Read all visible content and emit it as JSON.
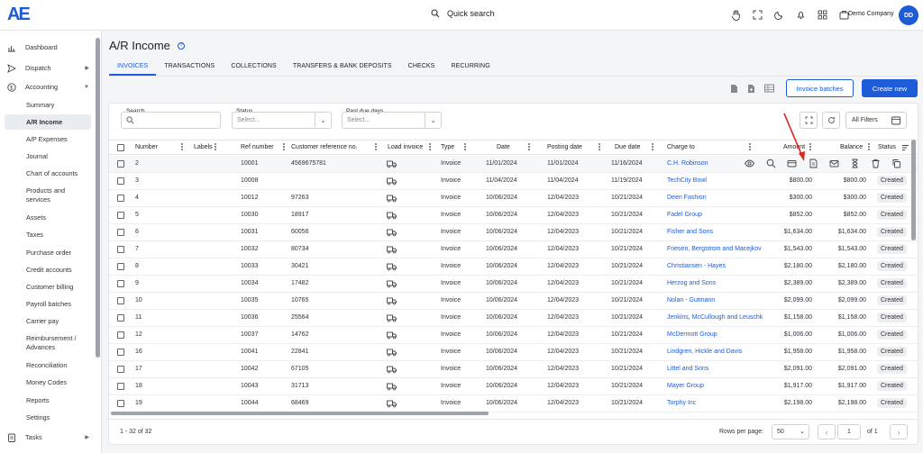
{
  "app": {
    "logo": "AE",
    "quick_search": "Quick search",
    "company": "Demo Company",
    "avatar": "DD"
  },
  "sidebar": {
    "top_items": [
      {
        "label": "Dashboard",
        "icon": "bar-chart-icon"
      },
      {
        "label": "Dispatch",
        "icon": "send-icon"
      },
      {
        "label": "Accounting",
        "icon": "dollar-icon"
      }
    ],
    "sub_items": [
      "Summary",
      "A/R Income",
      "A/P Expenses",
      "Journal",
      "Chart of accounts",
      "Products and services",
      "Assets",
      "Taxes",
      "Purchase order",
      "Credit accounts",
      "Customer billing",
      "Payroll batches",
      "Carrier pay",
      "Reimbursement / Advances",
      "Reconciliation",
      "Money Codes",
      "Reports",
      "Settings"
    ],
    "bottom_items": [
      {
        "label": "Tasks",
        "icon": "tasks-icon"
      }
    ]
  },
  "page": {
    "title": "A/R Income"
  },
  "tabs": [
    "INVOICES",
    "TRANSACTIONS",
    "COLLECTIONS",
    "TRANSFERS & BANK DEPOSITS",
    "CHECKS",
    "RECURRING"
  ],
  "actions": {
    "invoice_batches": "Invoice batches",
    "create_new": "Create new"
  },
  "filters": {
    "search_label": "Search",
    "status_label": "Status",
    "status_placeholder": "Select...",
    "past_due_label": "Past due days",
    "past_due_placeholder": "Select...",
    "all_filters": "All Filters"
  },
  "table": {
    "columns": [
      "Number",
      "Labels",
      "Ref number",
      "Customer reference no.",
      "Load invoice",
      "Type",
      "Date",
      "Posting date",
      "Due date",
      "Charge to",
      "Amount",
      "Balance",
      "Status"
    ],
    "rows": [
      {
        "number": "2",
        "ref": "10001",
        "custref": "4569675781",
        "type": "Invoice",
        "date": "11/01/2024",
        "posting": "11/01/2024",
        "due": "11/16/2024",
        "charge": "C.H. Robinson",
        "amount": "",
        "balance": "",
        "status": ""
      },
      {
        "number": "3",
        "ref": "10008",
        "custref": "",
        "type": "Invoice",
        "date": "11/04/2024",
        "posting": "11/04/2024",
        "due": "11/19/2024",
        "charge": "TechCity Bowl",
        "amount": "$800.00",
        "balance": "$800.00",
        "status": "Created"
      },
      {
        "number": "4",
        "ref": "10012",
        "custref": "97263",
        "type": "Invoice",
        "date": "10/06/2024",
        "posting": "12/04/2023",
        "due": "10/21/2024",
        "charge": "Deen Fashion",
        "amount": "$300.00",
        "balance": "$300.00",
        "status": "Created"
      },
      {
        "number": "5",
        "ref": "10030",
        "custref": "18917",
        "type": "Invoice",
        "date": "10/06/2024",
        "posting": "12/04/2023",
        "due": "10/21/2024",
        "charge": "Fadel Group",
        "amount": "$852.00",
        "balance": "$852.00",
        "status": "Created"
      },
      {
        "number": "6",
        "ref": "10031",
        "custref": "60056",
        "type": "Invoice",
        "date": "10/06/2024",
        "posting": "12/04/2023",
        "due": "10/21/2024",
        "charge": "Fisher and Sons",
        "amount": "$1,634.00",
        "balance": "$1,634.00",
        "status": "Created"
      },
      {
        "number": "7",
        "ref": "10032",
        "custref": "80734",
        "type": "Invoice",
        "date": "10/06/2024",
        "posting": "12/04/2023",
        "due": "10/21/2024",
        "charge": "Friesen, Bergstrom and Macejkov",
        "amount": "$1,543.00",
        "balance": "$1,543.00",
        "status": "Created"
      },
      {
        "number": "8",
        "ref": "10033",
        "custref": "30421",
        "type": "Invoice",
        "date": "10/06/2024",
        "posting": "12/04/2023",
        "due": "10/21/2024",
        "charge": "Christiansen - Hayes",
        "amount": "$2,180.00",
        "balance": "$2,180.00",
        "status": "Created"
      },
      {
        "number": "9",
        "ref": "10034",
        "custref": "17482",
        "type": "Invoice",
        "date": "10/06/2024",
        "posting": "12/04/2023",
        "due": "10/21/2024",
        "charge": "Herzog and Sons",
        "amount": "$2,389.00",
        "balance": "$2,389.00",
        "status": "Created"
      },
      {
        "number": "10",
        "ref": "10035",
        "custref": "10765",
        "type": "Invoice",
        "date": "10/06/2024",
        "posting": "12/04/2023",
        "due": "10/21/2024",
        "charge": "Nolan - Gutmann",
        "amount": "$2,099.00",
        "balance": "$2,099.00",
        "status": "Created"
      },
      {
        "number": "11",
        "ref": "10036",
        "custref": "25564",
        "type": "Invoice",
        "date": "10/06/2024",
        "posting": "12/04/2023",
        "due": "10/21/2024",
        "charge": "Jenkins, McCullough and Leuschk",
        "amount": "$1,158.00",
        "balance": "$1,158.00",
        "status": "Created"
      },
      {
        "number": "12",
        "ref": "10037",
        "custref": "14762",
        "type": "Invoice",
        "date": "10/06/2024",
        "posting": "12/04/2023",
        "due": "10/21/2024",
        "charge": "McDermott Group",
        "amount": "$1,006.00",
        "balance": "$1,006.00",
        "status": "Created"
      },
      {
        "number": "16",
        "ref": "10041",
        "custref": "22841",
        "type": "Invoice",
        "date": "10/06/2024",
        "posting": "12/04/2023",
        "due": "10/21/2024",
        "charge": "Lindgren, Hickle and Davis",
        "amount": "$1,958.00",
        "balance": "$1,958.00",
        "status": "Created"
      },
      {
        "number": "17",
        "ref": "10042",
        "custref": "67105",
        "type": "Invoice",
        "date": "10/06/2024",
        "posting": "12/04/2023",
        "due": "10/21/2024",
        "charge": "Littel and Sons",
        "amount": "$2,091.00",
        "balance": "$2,091.00",
        "status": "Created"
      },
      {
        "number": "18",
        "ref": "10043",
        "custref": "31713",
        "type": "Invoice",
        "date": "10/06/2024",
        "posting": "12/04/2023",
        "due": "10/21/2024",
        "charge": "Mayer Group",
        "amount": "$1,917.00",
        "balance": "$1,917.00",
        "status": "Created"
      },
      {
        "number": "19",
        "ref": "10044",
        "custref": "68469",
        "type": "Invoice",
        "date": "10/06/2024",
        "posting": "12/04/2023",
        "due": "10/21/2024",
        "charge": "Torphy Inc",
        "amount": "$2,198.00",
        "balance": "$2,198.00",
        "status": "Created"
      }
    ],
    "row_actions": [
      "eye-icon",
      "search-icon",
      "card-icon",
      "document-icon",
      "mail-icon",
      "hourglass-icon",
      "trash-icon",
      "copy-icon"
    ]
  },
  "footer": {
    "count": "1 - 32 of 32",
    "rows_per_page_label": "Rows per page:",
    "rows_per_page": "50",
    "page": "1",
    "of_pages": "of 1"
  },
  "colors": {
    "accent": "#1e5bd8",
    "annotation_arrow": "#e0251b"
  }
}
